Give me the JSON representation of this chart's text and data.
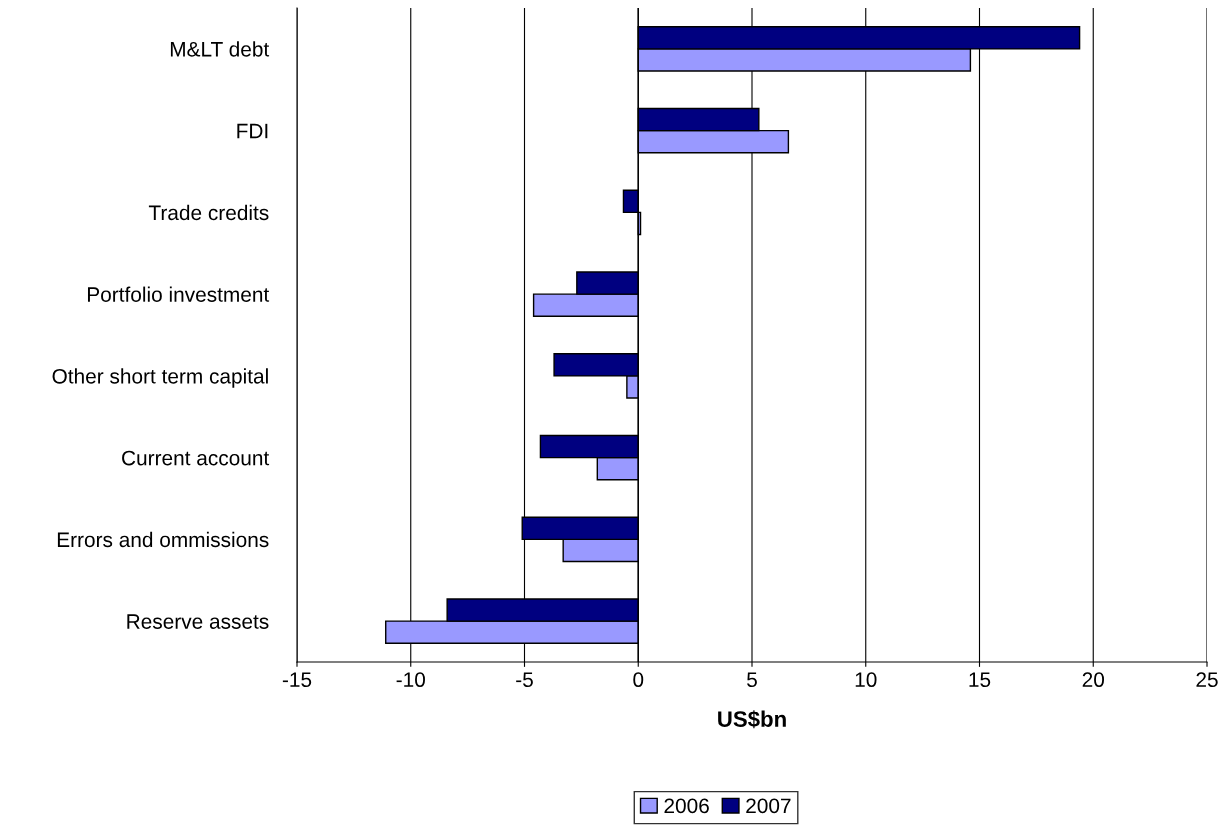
{
  "chart_data": {
    "type": "bar",
    "orientation": "horizontal",
    "xlabel": "US$bn",
    "categories": [
      "M&LT debt",
      "FDI",
      "Trade credits",
      "Portfolio investment",
      "Other short term capital",
      "Current account",
      "Errors and ommissions",
      "Reserve assets"
    ],
    "series": [
      {
        "name": "2006",
        "color": "#9999ff",
        "values": [
          14.6,
          6.6,
          0.1,
          -4.6,
          -0.5,
          -1.8,
          -3.3,
          -11.1
        ]
      },
      {
        "name": "2007",
        "color": "#000080",
        "values": [
          19.4,
          5.3,
          -0.65,
          -2.7,
          -3.7,
          -4.3,
          -5.1,
          -8.4
        ]
      }
    ],
    "xlim": [
      -15,
      25
    ],
    "xticks": [
      -15,
      -10,
      -5,
      0,
      5,
      10,
      15,
      20,
      25
    ],
    "grid": "x",
    "legend": "bottom"
  }
}
